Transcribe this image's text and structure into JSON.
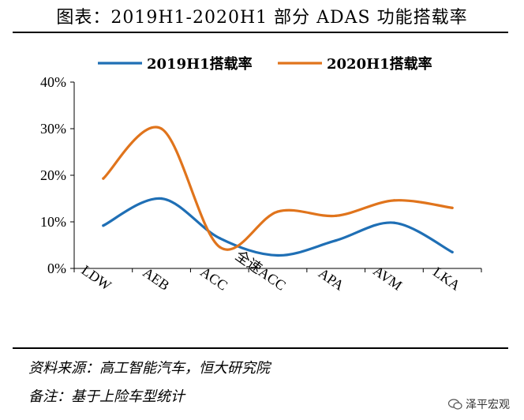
{
  "page": {
    "title": "图表：2019H1-2020H1 部分 ADAS 功能搭载率",
    "source": "资料来源：高工智能汽车，恒大研究院",
    "note": "备注：基于上险车型统计",
    "watermark": "泽平宏观",
    "watermark_icon": "wechat-icon"
  },
  "chart_data": {
    "type": "line",
    "smooth": true,
    "categories": [
      "LDW",
      "AEB",
      "ACC",
      "全速ACC",
      "APA",
      "AVM",
      "LKA"
    ],
    "series": [
      {
        "name": "2019H1搭载率",
        "color": "#1f6fb5",
        "values": [
          9.2,
          15,
          6.5,
          2.8,
          6,
          9.8,
          3.5
        ]
      },
      {
        "name": "2020H1搭载率",
        "color": "#e0741c",
        "values": [
          19.3,
          30,
          4.6,
          12.2,
          11.3,
          14.6,
          13
        ]
      }
    ],
    "yticks": [
      "0%",
      "10%",
      "20%",
      "30%",
      "40%"
    ],
    "ylim": [
      0,
      40
    ],
    "grid": false,
    "legend": "top"
  }
}
